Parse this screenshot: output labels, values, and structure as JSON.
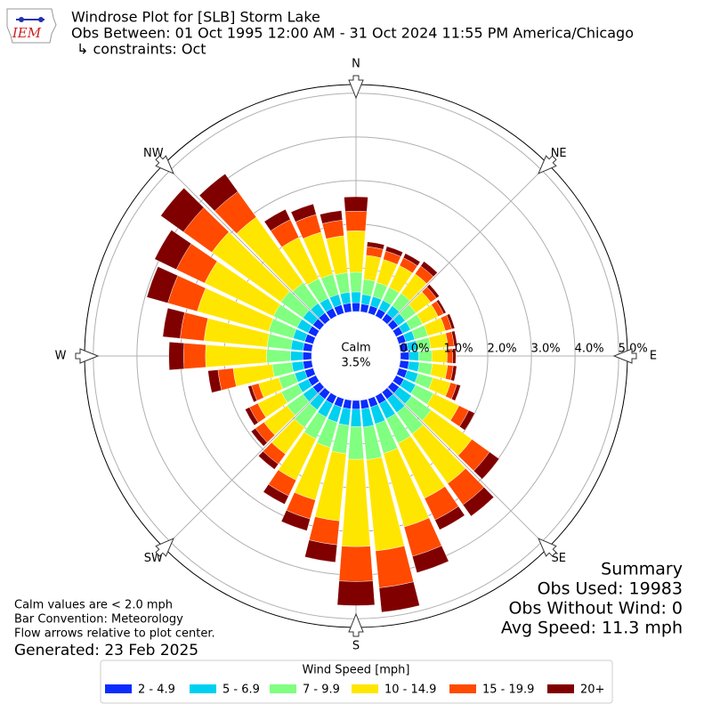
{
  "chart_data": {
    "type": "windrose",
    "logo_text": "IEM",
    "title_lines": [
      "Windrose Plot for [SLB] Storm Lake",
      "Obs Between: 01 Oct 1995 12:00 AM - 31 Oct 2024 11:55 PM America/Chicago",
      "↳ constraints: Oct"
    ],
    "direction_labels": [
      "N",
      "NE",
      "E",
      "SE",
      "S",
      "SW",
      "W",
      "NW"
    ],
    "x": [
      0,
      10,
      20,
      30,
      40,
      50,
      60,
      70,
      80,
      90,
      100,
      110,
      120,
      130,
      140,
      150,
      160,
      170,
      180,
      190,
      200,
      210,
      220,
      230,
      240,
      250,
      260,
      270,
      280,
      290,
      300,
      310,
      320,
      330,
      340,
      350
    ],
    "rlim": [
      0,
      5.2
    ],
    "rticks": [
      {
        "value": 0,
        "label": "0.0%"
      },
      {
        "value": 1,
        "label": "1.0%"
      },
      {
        "value": 2,
        "label": "2.0%"
      },
      {
        "value": 3,
        "label": "3.0%"
      },
      {
        "value": 4,
        "label": "4.0%"
      },
      {
        "value": 5,
        "label": "5.0%"
      }
    ],
    "calm_label": "Calm",
    "calm": 3.5,
    "calm_value_label": "3.5%",
    "legend_title": "Wind Speed [mph]",
    "series": [
      {
        "name": "2 - 4.9",
        "color": "#0a2cff",
        "values": [
          0.2,
          0.18,
          0.18,
          0.18,
          0.18,
          0.17,
          0.17,
          0.17,
          0.18,
          0.2,
          0.2,
          0.2,
          0.2,
          0.2,
          0.2,
          0.2,
          0.2,
          0.2,
          0.2,
          0.2,
          0.2,
          0.2,
          0.2,
          0.2,
          0.2,
          0.2,
          0.2,
          0.2,
          0.2,
          0.2,
          0.2,
          0.2,
          0.2,
          0.2,
          0.2,
          0.2
        ]
      },
      {
        "name": "5 - 6.9",
        "color": "#00d0f0",
        "values": [
          0.25,
          0.22,
          0.22,
          0.22,
          0.22,
          0.2,
          0.2,
          0.21,
          0.22,
          0.22,
          0.24,
          0.26,
          0.3,
          0.35,
          0.38,
          0.38,
          0.4,
          0.42,
          0.4,
          0.38,
          0.36,
          0.34,
          0.3,
          0.28,
          0.26,
          0.24,
          0.26,
          0.28,
          0.28,
          0.28,
          0.28,
          0.28,
          0.27,
          0.25,
          0.25,
          0.25
        ]
      },
      {
        "name": "7 - 9.9",
        "color": "#80ff80",
        "values": [
          0.45,
          0.35,
          0.33,
          0.33,
          0.35,
          0.3,
          0.3,
          0.31,
          0.3,
          0.3,
          0.3,
          0.35,
          0.45,
          0.55,
          0.6,
          0.62,
          0.7,
          0.75,
          0.75,
          0.65,
          0.6,
          0.55,
          0.5,
          0.45,
          0.42,
          0.38,
          0.45,
          0.55,
          0.55,
          0.58,
          0.6,
          0.62,
          0.58,
          0.5,
          0.48,
          0.45
        ]
      },
      {
        "name": "10 - 14.9",
        "color": "#ffe600",
        "values": [
          0.95,
          0.55,
          0.55,
          0.55,
          0.55,
          0.42,
          0.4,
          0.42,
          0.4,
          0.35,
          0.35,
          0.42,
          0.65,
          1.15,
          1.4,
          1.4,
          1.75,
          2.1,
          2.0,
          1.55,
          1.25,
          1.05,
          0.75,
          0.65,
          0.6,
          0.48,
          0.9,
          1.4,
          1.45,
          1.7,
          1.75,
          1.95,
          1.85,
          1.05,
          1.0,
          0.85
        ]
      },
      {
        "name": "15 - 19.9",
        "color": "#ff4a00",
        "values": [
          0.45,
          0.2,
          0.2,
          0.2,
          0.22,
          0.16,
          0.14,
          0.15,
          0.14,
          0.13,
          0.13,
          0.15,
          0.25,
          0.5,
          0.6,
          0.55,
          0.7,
          0.85,
          0.8,
          0.55,
          0.45,
          0.4,
          0.28,
          0.24,
          0.21,
          0.17,
          0.35,
          0.5,
          0.55,
          0.7,
          0.72,
          0.8,
          0.72,
          0.45,
          0.42,
          0.36
        ]
      },
      {
        "name": "20+",
        "color": "#800000",
        "values": [
          0.33,
          0.11,
          0.11,
          0.11,
          0.13,
          0.08,
          0.06,
          0.07,
          0.07,
          0.07,
          0.08,
          0.09,
          0.15,
          0.27,
          0.32,
          0.25,
          0.39,
          0.56,
          0.55,
          0.4,
          0.28,
          0.21,
          0.15,
          0.12,
          0.11,
          0.08,
          0.23,
          0.34,
          0.4,
          0.5,
          0.55,
          0.64,
          0.5,
          0.26,
          0.25,
          0.22
        ]
      }
    ],
    "summary_title": "Summary",
    "summary_lines": [
      "Obs Used: 19983",
      "Obs Without Wind: 0",
      "Avg Speed: 11.3 mph"
    ],
    "footnotes": [
      "Calm values are < 2.0 mph",
      "Bar Convention: Meteorology",
      "Flow arrows relative to plot center."
    ],
    "generated": "Generated: 23 Feb 2025"
  }
}
